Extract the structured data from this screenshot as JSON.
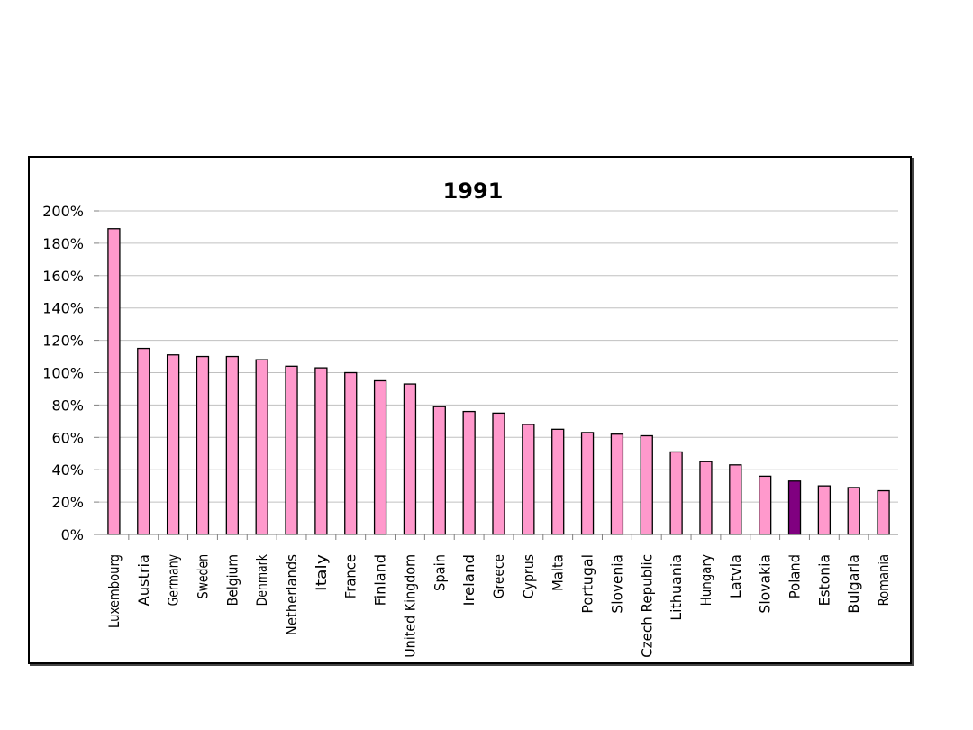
{
  "chart_data": {
    "type": "bar",
    "title": "1991",
    "xlabel": "",
    "ylabel": "",
    "ylim": [
      0,
      200
    ],
    "yticks": [
      "0%",
      "20%",
      "40%",
      "60%",
      "80%",
      "100%",
      "120%",
      "140%",
      "160%",
      "180%",
      "200%"
    ],
    "categories": [
      "Luxembourg",
      "Austria",
      "Germany",
      "Sweden",
      "Belgium",
      "Denmark",
      "Netherlands",
      "Italy",
      "France",
      "Finland",
      "United Kingdom",
      "Spain",
      "Ireland",
      "Greece",
      "Cyprus",
      "Malta",
      "Portugal",
      "Slovenia",
      "Czech Republic",
      "Lithuania",
      "Hungary",
      "Latvia",
      "Slovakia",
      "Poland",
      "Estonia",
      "Bulgaria",
      "Romania"
    ],
    "values": [
      189,
      115,
      111,
      110,
      110,
      108,
      104,
      103,
      100,
      95,
      93,
      79,
      76,
      75,
      68,
      65,
      63,
      62,
      61,
      51,
      45,
      43,
      36,
      33,
      30,
      29,
      27
    ],
    "highlight_category": "Poland",
    "colors": {
      "bar": "#FF99CC",
      "highlight": "#800080",
      "grid": "#C0C0C0",
      "outline": "#000000"
    }
  }
}
